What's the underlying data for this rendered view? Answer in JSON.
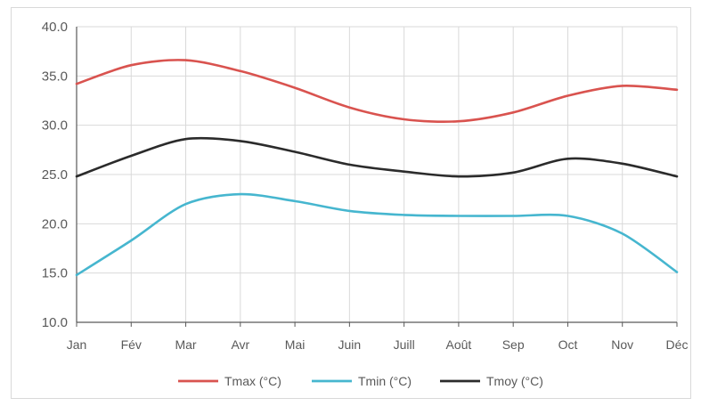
{
  "chart_data": {
    "type": "line",
    "title": "",
    "xlabel": "",
    "ylabel": "",
    "categories": [
      "Jan",
      "Fév",
      "Mar",
      "Avr",
      "Mai",
      "Juin",
      "Juill",
      "Août",
      "Sep",
      "Oct",
      "Nov",
      "Déc"
    ],
    "ylim": [
      10,
      40
    ],
    "yticks": [
      "10.0",
      "15.0",
      "20.0",
      "25.0",
      "30.0",
      "35.0",
      "40.0"
    ],
    "grid": true,
    "legend_position": "bottom",
    "series": [
      {
        "name": "Tmax (°C)",
        "color": "#d9534f",
        "values": [
          34.2,
          36.1,
          36.6,
          35.5,
          33.8,
          31.8,
          30.6,
          30.4,
          31.3,
          33.0,
          34.0,
          33.6
        ]
      },
      {
        "name": "Tmin (°C)",
        "color": "#46b6cf",
        "values": [
          14.8,
          18.3,
          22.0,
          23.0,
          22.3,
          21.3,
          20.9,
          20.8,
          20.8,
          20.8,
          19.0,
          15.1
        ]
      },
      {
        "name": "Tmoy (°C)",
        "color": "#2b2b2b",
        "values": [
          24.8,
          26.9,
          28.6,
          28.4,
          27.3,
          26.0,
          25.3,
          24.8,
          25.2,
          26.6,
          26.1,
          24.8
        ]
      }
    ]
  }
}
